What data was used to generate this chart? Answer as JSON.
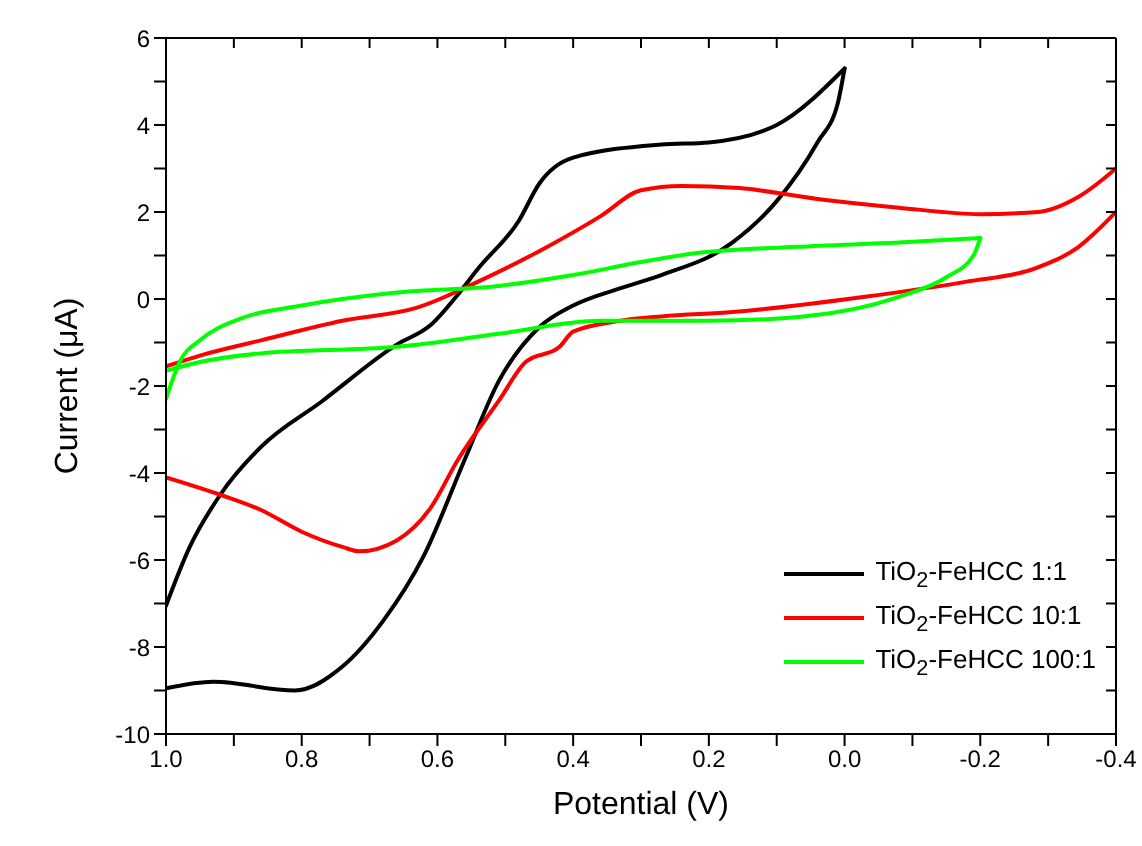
{
  "chart_data": {
    "type": "line",
    "xlabel": "Potential (V)",
    "ylabel": "Current (μA)",
    "xlim": [
      1.0,
      -0.4
    ],
    "ylim": [
      -10,
      6
    ],
    "xticks": [
      {
        "value": 1.0,
        "label": "1.0"
      },
      {
        "value": 0.9,
        "label": null
      },
      0.8,
      {
        "value": 0.7,
        "label": null
      },
      0.6,
      {
        "value": 0.5,
        "label": null
      },
      0.4,
      {
        "value": 0.3,
        "label": null
      },
      0.2,
      {
        "value": 0.1,
        "label": null
      },
      {
        "value": 0,
        "label": "0.0"
      },
      {
        "value": -0.1,
        "label": null
      },
      -0.2,
      {
        "value": -0.3,
        "label": null
      },
      -0.4
    ],
    "yticks": [
      -10,
      {
        "value": -9,
        "label": null
      },
      -8,
      {
        "value": -7,
        "label": null
      },
      -6,
      {
        "value": -5,
        "label": null
      },
      -4,
      {
        "value": -3,
        "label": null
      },
      -2,
      {
        "value": -1,
        "label": null
      },
      0,
      {
        "value": 1,
        "label": null
      },
      2,
      {
        "value": 3,
        "label": null
      },
      4,
      {
        "value": 5,
        "label": null
      },
      6
    ],
    "legend": "bottom right",
    "marker": "none",
    "line_style": "solid",
    "series": [
      {
        "name": "TiO$_{2}$-FeHCC 1:1",
        "color": "#000000",
        "x": [
          0.0,
          0.1,
          0.2,
          0.27,
          0.4,
          0.45,
          0.48,
          0.54,
          0.57,
          0.61,
          0.66,
          0.77,
          0.86,
          0.92,
          0.965,
          1.0
        ],
        "values": [
          5.3,
          4.0,
          3.6,
          3.55,
          3.25,
          2.65,
          1.8,
          0.7,
          0.1,
          -0.6,
          -1.05,
          -2.35,
          -3.4,
          -4.5,
          -5.7,
          -7.05
        ]
      },
      {
        "color": "#000000",
        "x": [
          1.0,
          0.93,
          0.81,
          0.74,
          0.68,
          0.62,
          0.56,
          0.51,
          0.45,
          0.4,
          0.33,
          0.27,
          0.165,
          0.1,
          0.04,
          0.01,
          0.0
        ],
        "values": [
          -8.95,
          -8.8,
          -9.0,
          -8.45,
          -7.4,
          -5.9,
          -3.7,
          -1.9,
          -0.65,
          -0.15,
          0.25,
          0.55,
          1.3,
          2.25,
          3.6,
          4.5,
          5.3
        ]
      },
      {
        "name": "TiO$_{2}$-FeHCC 10:1",
        "color": "#ff0000",
        "x": [
          -0.4,
          -0.345,
          -0.285,
          -0.2,
          -0.08,
          0.04,
          0.155,
          0.24,
          0.3,
          0.36,
          0.45,
          0.54,
          0.63,
          0.74,
          0.86,
          0.95,
          1.0
        ],
        "values": [
          3.0,
          2.35,
          2.0,
          1.95,
          2.1,
          2.3,
          2.55,
          2.6,
          2.5,
          1.9,
          1.1,
          0.4,
          -0.2,
          -0.5,
          -0.95,
          -1.3,
          -1.55
        ]
      },
      {
        "color": "#ff0000",
        "x": [
          1.0,
          0.92,
          0.86,
          0.8,
          0.74,
          0.715,
          0.66,
          0.61,
          0.57,
          0.51,
          0.47,
          0.42,
          0.4,
          0.33,
          0.27,
          0.165,
          -0.03,
          -0.18,
          -0.28,
          -0.345,
          -0.4
        ],
        "values": [
          -4.1,
          -4.5,
          -4.85,
          -5.35,
          -5.7,
          -5.8,
          -5.55,
          -4.8,
          -3.7,
          -2.35,
          -1.45,
          -1.1,
          -0.75,
          -0.5,
          -0.4,
          -0.3,
          0.05,
          0.4,
          0.7,
          1.2,
          2.0
        ]
      },
      {
        "name": "TiO$_{2}$-FeHCC 100:1",
        "color": "#00ff00",
        "x": [
          -0.2,
          -0.08,
          0.07,
          0.22,
          0.3,
          0.4,
          0.51,
          0.66,
          0.8,
          0.89,
          0.95,
          0.98,
          1.0
        ],
        "values": [
          1.4,
          1.3,
          1.2,
          1.05,
          0.85,
          0.55,
          0.3,
          0.15,
          -0.15,
          -0.45,
          -0.95,
          -1.45,
          -2.3
        ]
      },
      {
        "color": "#00ff00",
        "x": [
          1.0,
          0.95,
          0.86,
          0.66,
          0.51,
          0.36,
          0.2,
          0.06,
          -0.08,
          -0.15,
          -0.19,
          -0.2
        ],
        "values": [
          -1.65,
          -1.45,
          -1.25,
          -1.1,
          -0.8,
          -0.5,
          -0.5,
          -0.4,
          0.05,
          0.5,
          1.0,
          1.4
        ]
      }
    ]
  }
}
